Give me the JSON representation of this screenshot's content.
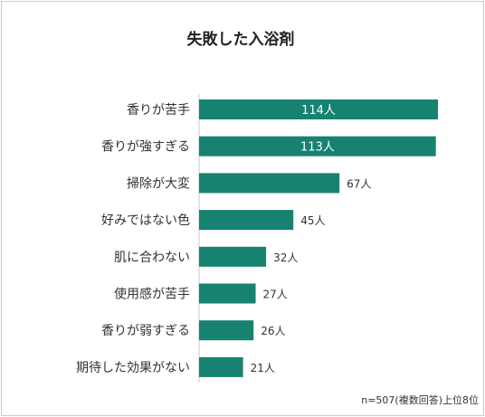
{
  "chart_data": {
    "type": "bar",
    "orientation": "horizontal",
    "title": "失敗した入浴剤",
    "categories": [
      "香りが苦手",
      "香りが強すぎる",
      "掃除が大変",
      "好みではない色",
      "肌に合わない",
      "使用感が苦手",
      "香りが弱すぎる",
      "期待した効果がない"
    ],
    "values": [
      114,
      113,
      67,
      45,
      32,
      27,
      26,
      21
    ],
    "value_labels": [
      "114人",
      "113人",
      "67人",
      "45人",
      "32人",
      "27人",
      "26人",
      "21人"
    ],
    "note": "n=507(複数回答)上位8位",
    "bar_color": "#16826f",
    "grid": false,
    "legend": "none"
  }
}
